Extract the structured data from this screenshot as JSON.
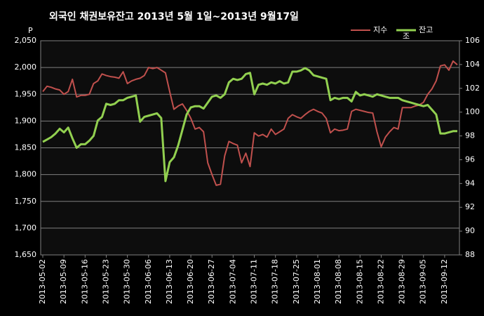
{
  "chart_data": {
    "type": "line",
    "title": "외국인 채권보유잔고  2013년 5월 1일~2013년 9월17일",
    "y_unit": "P",
    "y2_unit": "조",
    "categories": [
      "2013-05-02",
      null,
      null,
      null,
      null,
      "2013-05-09",
      null,
      null,
      null,
      null,
      "2013-05-16",
      null,
      null,
      null,
      null,
      "2013-05-23",
      null,
      null,
      null,
      null,
      "2013-05-30",
      null,
      null,
      null,
      null,
      "2013-06-06",
      null,
      null,
      null,
      null,
      "2013-06-13",
      null,
      null,
      null,
      null,
      "2013-06-20",
      null,
      null,
      null,
      null,
      "2013-06-27",
      null,
      null,
      null,
      null,
      "2013-07-04",
      null,
      null,
      null,
      null,
      "2013-07-11",
      null,
      null,
      null,
      null,
      "2013-07-18",
      null,
      null,
      null,
      null,
      "2013-07-25",
      null,
      null,
      null,
      null,
      "2013-08-01",
      null,
      null,
      null,
      null,
      "2013-08-08",
      null,
      null,
      null,
      null,
      "2013-08-15",
      null,
      null,
      null,
      null,
      "2013-08-22",
      null,
      null,
      null,
      null,
      "2013-08-29",
      null,
      null,
      null,
      null,
      "2013-09-05",
      null,
      null,
      null,
      null,
      "2013-09-12",
      null,
      null,
      null
    ],
    "series": [
      {
        "name": "지수",
        "color": "#c0504d",
        "axis": "y",
        "values": [
          1955,
          1965,
          1963,
          1960,
          1958,
          1950,
          1955,
          1978,
          1945,
          1948,
          1948,
          1950,
          1970,
          1975,
          1988,
          1985,
          1983,
          1982,
          1980,
          1992,
          1970,
          1975,
          1978,
          1980,
          1985,
          2000,
          1998,
          2000,
          1995,
          1990,
          1955,
          1922,
          1928,
          1932,
          1920,
          1905,
          1885,
          1888,
          1880,
          1822,
          1800,
          1780,
          1782,
          1835,
          1862,
          1858,
          1855,
          1822,
          1840,
          1815,
          1878,
          1872,
          1875,
          1870,
          1885,
          1875,
          1880,
          1885,
          1905,
          1912,
          1908,
          1905,
          1912,
          1918,
          1922,
          1918,
          1915,
          1905,
          1878,
          1885,
          1882,
          1883,
          1885,
          1918,
          1922,
          1920,
          1918,
          1916,
          1915,
          1880,
          1852,
          1870,
          1880,
          1888,
          1885,
          1925,
          1925,
          1925,
          1928,
          1930,
          1935,
          1950,
          1960,
          1975,
          2003,
          2005,
          1995,
          2012,
          2005
        ]
      },
      {
        "name": "잔고",
        "color": "#92d050",
        "axis": "y2",
        "values": [
          97.5,
          97.7,
          97.9,
          98.2,
          98.6,
          98.3,
          98.7,
          97.8,
          97.0,
          97.3,
          97.3,
          97.6,
          98.0,
          99.3,
          99.6,
          100.7,
          100.6,
          100.7,
          101.0,
          101.0,
          101.2,
          101.3,
          101.4,
          99.2,
          99.6,
          99.7,
          99.8,
          99.9,
          99.5,
          94.2,
          95.8,
          96.2,
          97.2,
          98.5,
          99.8,
          100.4,
          100.5,
          100.5,
          100.3,
          100.8,
          101.3,
          101.4,
          101.2,
          101.5,
          102.5,
          102.8,
          102.7,
          102.8,
          103.2,
          103.3,
          101.5,
          102.3,
          102.4,
          102.3,
          102.5,
          102.4,
          102.6,
          102.4,
          102.5,
          103.4,
          103.4,
          103.5,
          103.7,
          103.5,
          103.1,
          103.0,
          102.9,
          102.8,
          101.0,
          101.2,
          101.1,
          101.2,
          101.2,
          100.9,
          101.7,
          101.4,
          101.5,
          101.4,
          101.3,
          101.5,
          101.4,
          101.3,
          101.2,
          101.2,
          101.2,
          101.0,
          100.9,
          100.8,
          100.7,
          100.6,
          100.5,
          100.6,
          100.2,
          99.8,
          98.2,
          98.2,
          98.3,
          98.4,
          98.4
        ]
      }
    ],
    "ylim": [
      1650,
      2050
    ],
    "yticks": [
      {
        "value": 1650,
        "label": "1,650"
      },
      {
        "value": 1700,
        "label": "1,700"
      },
      {
        "value": 1750,
        "label": "1,750"
      },
      {
        "value": 1800,
        "label": "1,800"
      },
      {
        "value": 1850,
        "label": "1,850"
      },
      {
        "value": 1900,
        "label": "1,900"
      },
      {
        "value": 1950,
        "label": "1,950"
      },
      {
        "value": 2000,
        "label": "2,000"
      },
      {
        "value": 2050,
        "label": "2,050"
      }
    ],
    "y2lim": [
      88,
      106
    ],
    "y2ticks": [
      88,
      90,
      92,
      94,
      96,
      98,
      100,
      102,
      104,
      106
    ],
    "grid": true
  }
}
